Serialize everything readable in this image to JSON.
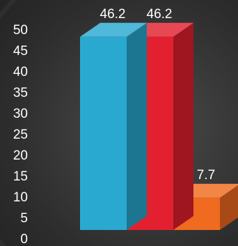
{
  "chart_data": {
    "type": "bar",
    "title": "",
    "xlabel": "",
    "ylabel": "",
    "categories": [
      "",
      "",
      ""
    ],
    "values": [
      46.2,
      46.2,
      7.7
    ],
    "data_labels": [
      "46.2",
      "46.2",
      "7.7"
    ],
    "colors": [
      "#29a9cf",
      "#e3202f",
      "#f06a1f"
    ],
    "ylim": [
      0,
      50
    ],
    "yticks": [
      0,
      5,
      10,
      15,
      20,
      25,
      30,
      35,
      40,
      45,
      50
    ],
    "three_d": true,
    "grid": false,
    "legend": "none"
  }
}
